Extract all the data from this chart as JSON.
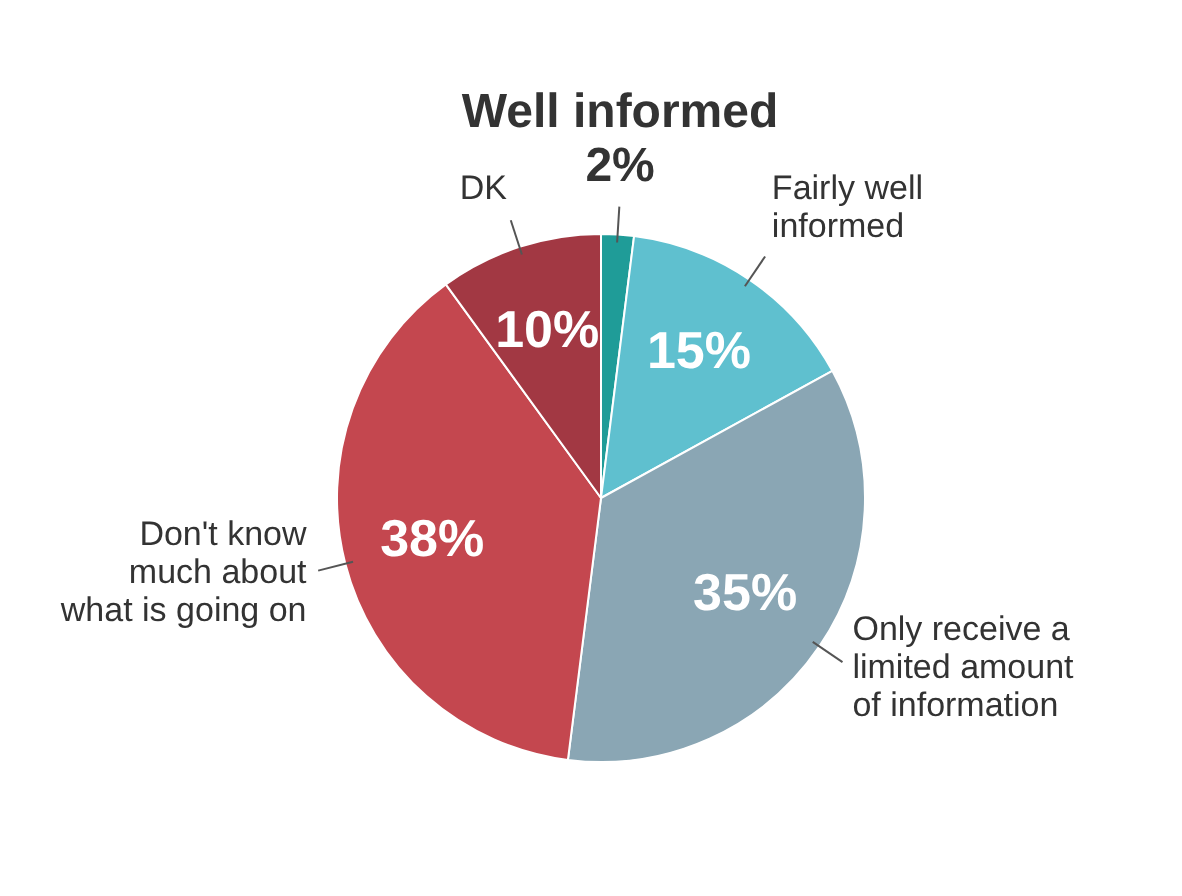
{
  "chart_data": {
    "type": "pie",
    "categories": [
      "Well informed",
      "Fairly well informed",
      "Only receive a limited amount of information",
      "Don't know much about what is going on",
      "DK"
    ],
    "values": [
      2,
      15,
      35,
      38,
      10
    ],
    "colors": [
      "#1f9c98",
      "#5fc0cf",
      "#8aa6b4",
      "#c4474f",
      "#a23843"
    ],
    "value_labels": [
      "2%",
      "15%",
      "35%",
      "38%",
      "10%"
    ],
    "legend": false
  }
}
